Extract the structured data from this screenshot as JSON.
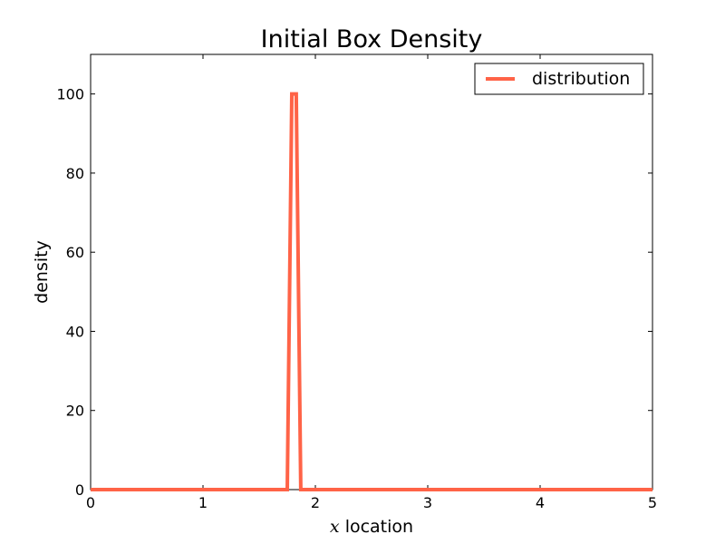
{
  "chart_data": {
    "type": "line",
    "title": "Initial Box Density",
    "xlabel_var": "x",
    "xlabel": "location",
    "ylabel": "density",
    "xlim": [
      0,
      5
    ],
    "ylim": [
      0,
      110
    ],
    "xticks": [
      0,
      1,
      2,
      3,
      4,
      5
    ],
    "yticks": [
      0,
      20,
      40,
      60,
      80,
      100
    ],
    "grid": false,
    "legend_position": "top-right",
    "series": [
      {
        "name": "distribution",
        "color": "#ff6347",
        "x": [
          0,
          1.75,
          1.79,
          1.83,
          1.87,
          5
        ],
        "y": [
          0,
          0,
          100,
          100,
          0,
          0
        ]
      }
    ]
  }
}
